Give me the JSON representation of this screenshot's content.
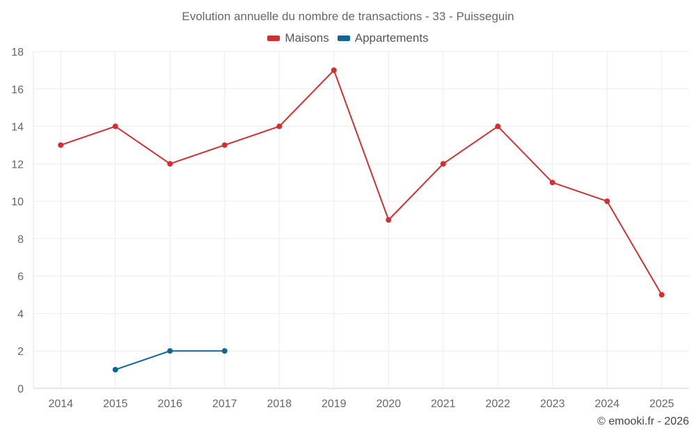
{
  "chart_data": {
    "type": "line",
    "title": "Evolution annuelle du nombre de transactions - 33 - Puisseguin",
    "xlabel": "",
    "ylabel": "",
    "ylim": [
      0,
      18
    ],
    "yticks": [
      0,
      2,
      4,
      6,
      8,
      10,
      12,
      14,
      16,
      18
    ],
    "categories": [
      "2014",
      "2015",
      "2016",
      "2017",
      "2018",
      "2019",
      "2020",
      "2021",
      "2022",
      "2023",
      "2024",
      "2025"
    ],
    "grid": true,
    "legend_position": "top-center",
    "series": [
      {
        "name": "Maisons",
        "color": "#d32f2f",
        "values": [
          13,
          14,
          12,
          13,
          14,
          17,
          9,
          12,
          14,
          11,
          10,
          5
        ]
      },
      {
        "name": "Appartements",
        "color": "#0b6699",
        "values": [
          null,
          1,
          2,
          2,
          null,
          null,
          null,
          null,
          null,
          null,
          null,
          null
        ]
      }
    ]
  },
  "credit": "© emooki.fr - 2026"
}
